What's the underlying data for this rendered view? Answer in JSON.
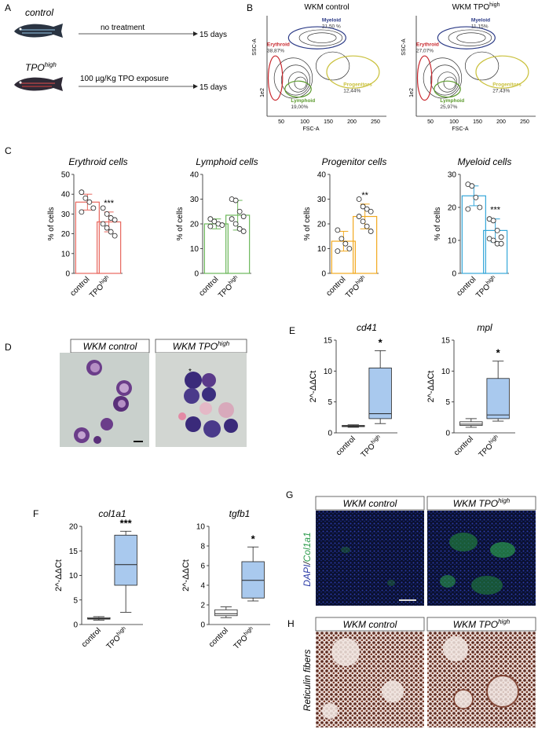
{
  "panels": {
    "A": {
      "letter": "A",
      "control_label": "control",
      "control_arrow_text": "no treatment",
      "control_duration": "15 days",
      "tpo_label": "TPO",
      "tpo_sup": "high",
      "tpo_arrow_text": "100 µg/Kg TPO exposure",
      "tpo_duration": "15 days"
    },
    "B": {
      "letter": "B",
      "plots": [
        {
          "title": "WKM control",
          "title_sup": "",
          "ylabel": "SSC-A",
          "xlabel": "FSC-A",
          "y_tick": "1e2",
          "x_ticks": [
            "50",
            "100",
            "150",
            "200",
            "250"
          ],
          "gates": [
            {
              "name": "Myeloid",
              "pct": "21,50 %",
              "color": "#2b3a86"
            },
            {
              "name": "Erythroid",
              "pct": "38,87%",
              "color": "#c8282e"
            },
            {
              "name": "Lymphoid",
              "pct": "19,00%",
              "color": "#5a9a2a"
            },
            {
              "name": "Progenitors",
              "pct": "12,44%",
              "color": "#c9c03a"
            }
          ]
        },
        {
          "title": "WKM TPO",
          "title_sup": "high",
          "ylabel": "SSC-A",
          "xlabel": "FSC-A",
          "y_tick": "1e2",
          "x_ticks": [
            "50",
            "100",
            "150",
            "200",
            "250"
          ],
          "gates": [
            {
              "name": "Myeloid",
              "pct": "11,15%",
              "color": "#2b3a86"
            },
            {
              "name": "Erythroid",
              "pct": "27,07%",
              "color": "#c8282e"
            },
            {
              "name": "Lymphoid",
              "pct": "25,97%",
              "color": "#5a9a2a"
            },
            {
              "name": "Progenitors",
              "pct": "27,43%",
              "color": "#c9c03a"
            }
          ]
        }
      ]
    },
    "C": {
      "letter": "C"
    },
    "D": {
      "letter": "D",
      "titles": [
        "WKM control",
        "WKM TPO"
      ],
      "title_sup": "high",
      "asterisk": "*"
    },
    "E": {
      "letter": "E"
    },
    "F": {
      "letter": "F"
    },
    "G": {
      "letter": "G",
      "titles": [
        "WKM control",
        "WKM TPO"
      ],
      "title_sup": "high",
      "side_label_1": "DAPI",
      "side_label_sep": "/",
      "side_label_2": "Col1a1"
    },
    "H": {
      "letter": "H",
      "titles": [
        "WKM control",
        "WKM TPO"
      ],
      "title_sup": "high",
      "side_label": "Reticulin fibers"
    }
  },
  "chart_data": [
    {
      "id": "C1",
      "type": "bar",
      "title": "Erythroid cells",
      "ylabel": "% of cells",
      "ylim": [
        0,
        50
      ],
      "yticks": [
        0,
        10,
        20,
        30,
        40,
        50
      ],
      "color": "#e8675d",
      "categories": [
        "control",
        "TPO"
      ],
      "cat_sup": [
        "",
        "high"
      ],
      "values": [
        36,
        26
      ],
      "errors": [
        4,
        5
      ],
      "points": [
        [
          41,
          38,
          36,
          33,
          31
        ],
        [
          33,
          30,
          28,
          27,
          25,
          23,
          21,
          19
        ]
      ],
      "significance": "***"
    },
    {
      "id": "C2",
      "type": "bar",
      "title": "Lymphoid cells",
      "ylabel": "% of cells",
      "ylim": [
        0,
        40
      ],
      "yticks": [
        0,
        10,
        20,
        30,
        40
      ],
      "color": "#6cb75a",
      "categories": [
        "control",
        "TPO"
      ],
      "cat_sup": [
        "",
        "high"
      ],
      "values": [
        20,
        23.5
      ],
      "errors": [
        2,
        6
      ],
      "points": [
        [
          22,
          21,
          20,
          19.5,
          19
        ],
        [
          30,
          29.5,
          25,
          23,
          22,
          20,
          18,
          17
        ]
      ],
      "significance": ""
    },
    {
      "id": "C3",
      "type": "bar",
      "title": "Progenitor cells",
      "ylabel": "% of cells",
      "ylim": [
        0,
        40
      ],
      "yticks": [
        0,
        10,
        20,
        30,
        40
      ],
      "color": "#f2a91f",
      "categories": [
        "control",
        "TPO"
      ],
      "cat_sup": [
        "",
        "high"
      ],
      "values": [
        13,
        23
      ],
      "errors": [
        4,
        5
      ],
      "points": [
        [
          17.5,
          14,
          12,
          10,
          9
        ],
        [
          30,
          27,
          26,
          25,
          23,
          21,
          19,
          17
        ]
      ],
      "significance": "**"
    },
    {
      "id": "C4",
      "type": "bar",
      "title": "Myeloid cells",
      "ylabel": "% of cells",
      "ylim": [
        0,
        30
      ],
      "yticks": [
        0,
        10,
        20,
        30
      ],
      "color": "#35a6d8",
      "categories": [
        "control",
        "TPO"
      ],
      "cat_sup": [
        "",
        "high"
      ],
      "values": [
        23.5,
        13
      ],
      "errors": [
        3,
        3.5
      ],
      "points": [
        [
          27,
          26.5,
          23,
          20,
          19.5
        ],
        [
          16.5,
          16,
          13,
          11,
          10.5,
          10,
          9,
          9
        ]
      ],
      "significance": "***"
    },
    {
      "id": "E1",
      "type": "box",
      "title": "cd41",
      "ylabel": "2^-ΔΔCt",
      "ylim": [
        0,
        15
      ],
      "yticks": [
        0,
        5,
        10,
        15
      ],
      "categories": [
        "control",
        "TPO"
      ],
      "cat_sup": [
        "",
        "high"
      ],
      "boxes": [
        {
          "min": 0.9,
          "q1": 1.0,
          "median": 1.1,
          "q3": 1.2,
          "max": 1.3,
          "fill": "#ffffff"
        },
        {
          "min": 1.5,
          "q1": 2.3,
          "median": 3.1,
          "q3": 10.5,
          "max": 13.3,
          "fill": "#a9c9ee"
        }
      ],
      "significance": "*"
    },
    {
      "id": "E2",
      "type": "box",
      "title": "mpl",
      "ylabel": "2^-ΔΔCt",
      "ylim": [
        0,
        15
      ],
      "yticks": [
        0,
        5,
        10,
        15
      ],
      "categories": [
        "control",
        "TPO"
      ],
      "cat_sup": [
        "",
        "high"
      ],
      "boxes": [
        {
          "min": 0.9,
          "q1": 1.2,
          "median": 1.4,
          "q3": 1.8,
          "max": 2.3,
          "fill": "#ffffff"
        },
        {
          "min": 1.9,
          "q1": 2.3,
          "median": 2.9,
          "q3": 8.8,
          "max": 11.6,
          "fill": "#a9c9ee"
        }
      ],
      "significance": "*"
    },
    {
      "id": "F1",
      "type": "box",
      "title": "col1a1",
      "ylabel": "2^-ΔΔCt",
      "ylim": [
        0,
        20
      ],
      "yticks": [
        0,
        5,
        10,
        15,
        20
      ],
      "categories": [
        "control",
        "TPO"
      ],
      "cat_sup": [
        "",
        "high"
      ],
      "boxes": [
        {
          "min": 0.9,
          "q1": 1.1,
          "median": 1.2,
          "q3": 1.4,
          "max": 1.6,
          "fill": "#ffffff"
        },
        {
          "min": 2.5,
          "q1": 8.0,
          "median": 12.2,
          "q3": 18.2,
          "max": 19.0,
          "fill": "#a9c9ee"
        }
      ],
      "significance": "***"
    },
    {
      "id": "F2",
      "type": "box",
      "title": "tgfb1",
      "ylabel": "2^-ΔΔCt",
      "ylim": [
        0,
        10
      ],
      "yticks": [
        0,
        2,
        4,
        6,
        8,
        10
      ],
      "categories": [
        "control",
        "TPO"
      ],
      "cat_sup": [
        "",
        "high"
      ],
      "boxes": [
        {
          "min": 0.7,
          "q1": 0.9,
          "median": 1.1,
          "q3": 1.5,
          "max": 1.8,
          "fill": "#ffffff"
        },
        {
          "min": 2.4,
          "q1": 2.7,
          "median": 4.5,
          "q3": 6.4,
          "max": 7.9,
          "fill": "#a9c9ee"
        }
      ],
      "significance": "*"
    }
  ]
}
